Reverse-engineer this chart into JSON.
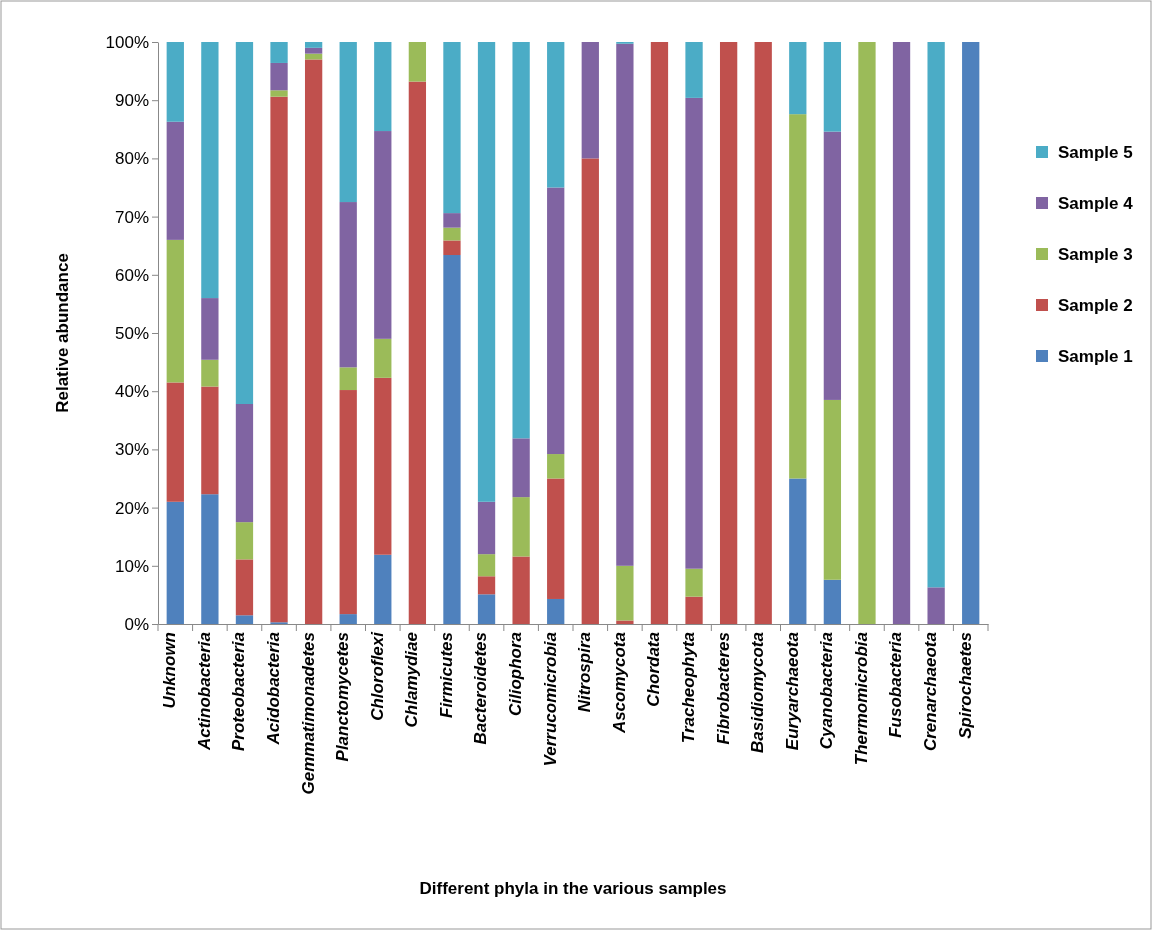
{
  "chart_data": {
    "type": "bar",
    "stacked": true,
    "xlabel": "Different phyla in the various samples",
    "ylabel": "Relative abundance",
    "categories": [
      "Unknown",
      "Actinobacteria",
      "Proteobacteria",
      "Acidobacteria",
      "Gemmatimonadetes",
      "Planctomycetes",
      "Chloroflexi",
      "Chlamydiae",
      "Firmicutes",
      "Bacteroidetes",
      "Ciliophora",
      "Verrucomicrobia",
      "Nitrospira",
      "Ascomycota",
      "Chordata",
      "Tracheophyta",
      "Fibrobacteres",
      "Basidiomycota",
      "Euryarchaeota",
      "Cyanobacteria",
      "Thermomicrobia",
      "Fusobacteria",
      "Crenarchaeota",
      "Spirochaetes"
    ],
    "series": [
      {
        "name": "Sample 1",
        "color": "#4f81bd",
        "values": [
          21,
          22.3,
          1.5,
          0.3,
          0,
          1.7,
          11.9,
          0,
          63.4,
          5.1,
          0,
          4.3,
          0,
          0,
          0,
          0,
          0,
          0,
          25,
          7.6,
          0,
          0,
          0,
          100
        ]
      },
      {
        "name": "Sample 2",
        "color": "#c0504d",
        "values": [
          20.5,
          18.5,
          9.6,
          90.3,
          97,
          38.5,
          30.4,
          93.2,
          2.5,
          3.1,
          11.6,
          20.7,
          80,
          0.6,
          100,
          4.7,
          100,
          100,
          0,
          0,
          0,
          0,
          0,
          0
        ]
      },
      {
        "name": "Sample 3",
        "color": "#9bbb59",
        "values": [
          24.5,
          4.6,
          6.4,
          1.1,
          1,
          3.9,
          6.7,
          6.8,
          2.2,
          3.8,
          10.2,
          4.2,
          0,
          9.4,
          0,
          4.8,
          0,
          0,
          62.6,
          30.9,
          100,
          0,
          0,
          0
        ]
      },
      {
        "name": "Sample 4",
        "color": "#8064a2",
        "values": [
          20.3,
          10.6,
          20.3,
          4.7,
          1,
          28.4,
          35.7,
          0,
          2.5,
          9,
          10.1,
          45.8,
          20,
          89.7,
          0,
          80.9,
          0,
          0,
          0,
          46.1,
          0,
          100,
          6.3,
          0
        ]
      },
      {
        "name": "Sample 5",
        "color": "#4bacc6",
        "values": [
          13.7,
          44,
          62.2,
          3.6,
          1,
          27.5,
          15.3,
          0,
          29.4,
          79,
          68.1,
          25,
          0,
          0.3,
          0,
          9.6,
          0,
          0,
          12.4,
          15.4,
          0,
          0,
          93.7,
          0
        ]
      }
    ],
    "ylim": [
      0,
      100
    ],
    "yticks": [
      {
        "value": 0,
        "label": "0%"
      },
      {
        "value": 10,
        "label": "10%"
      },
      {
        "value": 20,
        "label": "20%"
      },
      {
        "value": 30,
        "label": "30%"
      },
      {
        "value": 40,
        "label": "40%"
      },
      {
        "value": 50,
        "label": "50%"
      },
      {
        "value": 60,
        "label": "60%"
      },
      {
        "value": 70,
        "label": "70%"
      },
      {
        "value": 80,
        "label": "80%"
      },
      {
        "value": 90,
        "label": "90%"
      },
      {
        "value": 100,
        "label": "100%"
      }
    ],
    "legend": "right",
    "grid": false
  }
}
